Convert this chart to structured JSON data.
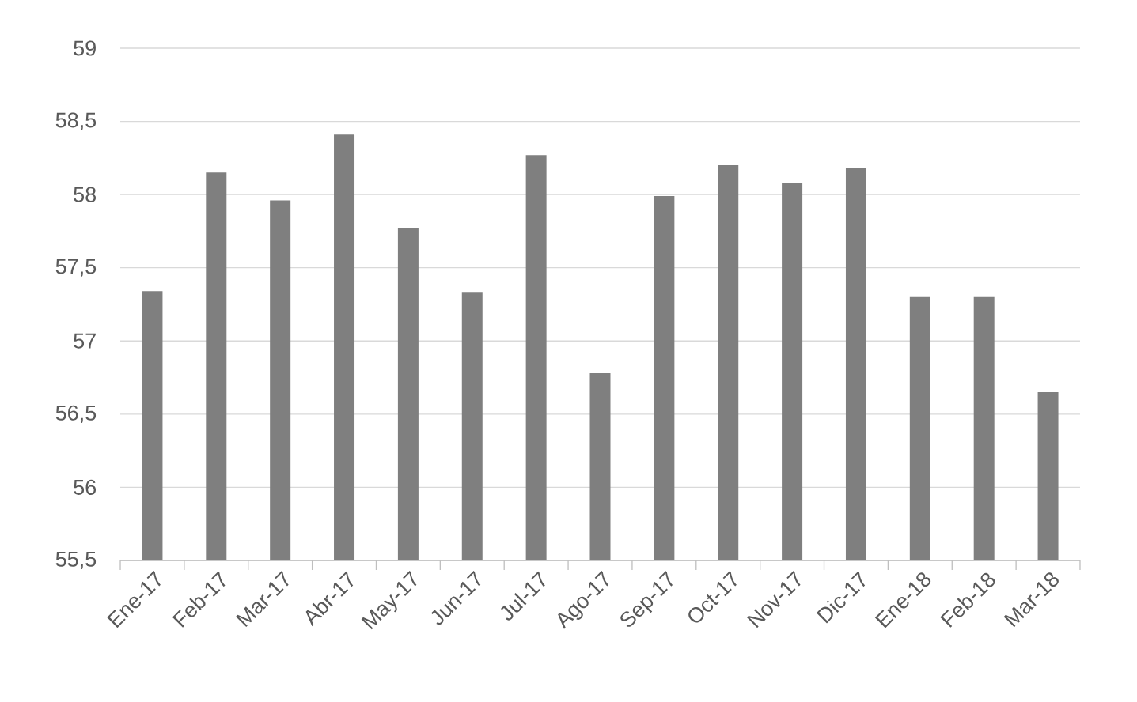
{
  "chart_data": {
    "type": "bar",
    "categories": [
      "Ene-17",
      "Feb-17",
      "Mar-17",
      "Abr-17",
      "May-17",
      "Jun-17",
      "Jul-17",
      "Ago-17",
      "Sep-17",
      "Oct-17",
      "Nov-17",
      "Dic-17",
      "Ene-18",
      "Feb-18",
      "Mar-18"
    ],
    "values": [
      57.34,
      58.15,
      57.96,
      58.41,
      57.77,
      57.33,
      58.27,
      56.78,
      57.99,
      58.2,
      58.08,
      58.18,
      57.3,
      57.3,
      56.65
    ],
    "color": "#7f7f7f",
    "ylim": [
      55.5,
      59
    ],
    "yticks": [
      {
        "value": 55.5,
        "label": "55,5"
      },
      56,
      {
        "value": 56.5,
        "label": "56,5"
      },
      57,
      {
        "value": 57.5,
        "label": "57,5"
      },
      58,
      {
        "value": 58.5,
        "label": "58,5"
      },
      59
    ],
    "grid": "y"
  }
}
